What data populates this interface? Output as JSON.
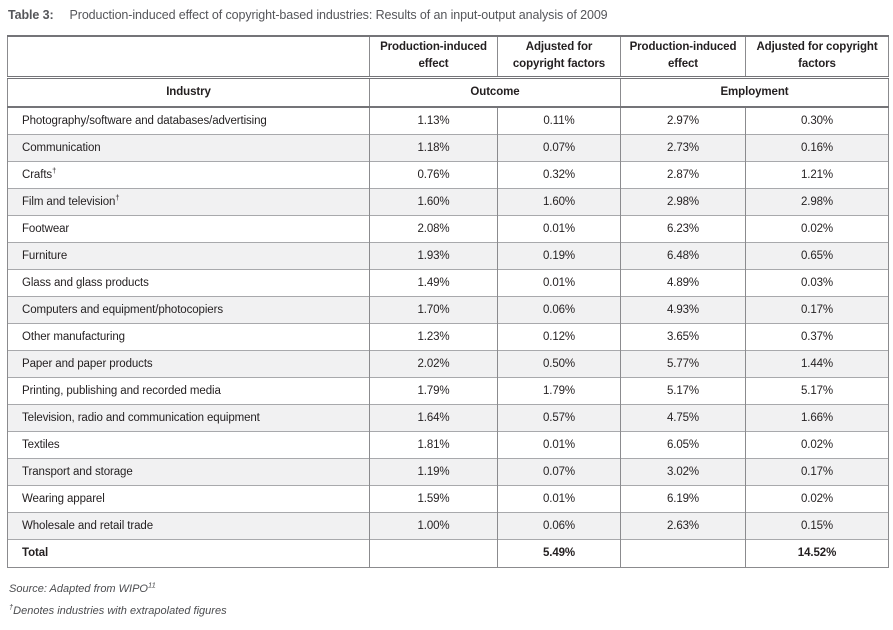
{
  "title": {
    "label": "Table 3:",
    "text": "Production-induced effect of copyright-based industries: Results of an input-output analysis of 2009"
  },
  "table": {
    "header_row1": [
      "Production-induced effect",
      "Adjusted for copyright factors",
      "Production-induced effect",
      "Adjusted for copyright factors"
    ],
    "header_row2": {
      "industry": "Industry",
      "outcome": "Outcome",
      "employment": "Employment"
    },
    "rows": [
      {
        "industry": "Photography/software and databases/advertising",
        "sup": "",
        "values": [
          "1.13%",
          "0.11%",
          "2.97%",
          "0.30%"
        ]
      },
      {
        "industry": "Communication",
        "sup": "",
        "values": [
          "1.18%",
          "0.07%",
          "2.73%",
          "0.16%"
        ]
      },
      {
        "industry": "Crafts",
        "sup": "†",
        "values": [
          "0.76%",
          "0.32%",
          "2.87%",
          "1.21%"
        ]
      },
      {
        "industry": "Film and television",
        "sup": "†",
        "values": [
          "1.60%",
          "1.60%",
          "2.98%",
          "2.98%"
        ]
      },
      {
        "industry": "Footwear",
        "sup": "",
        "values": [
          "2.08%",
          "0.01%",
          "6.23%",
          "0.02%"
        ]
      },
      {
        "industry": "Furniture",
        "sup": "",
        "values": [
          "1.93%",
          "0.19%",
          "6.48%",
          "0.65%"
        ]
      },
      {
        "industry": "Glass and glass products",
        "sup": "",
        "values": [
          "1.49%",
          "0.01%",
          "4.89%",
          "0.03%"
        ]
      },
      {
        "industry": "Computers and equipment/photocopiers",
        "sup": "",
        "values": [
          "1.70%",
          "0.06%",
          "4.93%",
          "0.17%"
        ]
      },
      {
        "industry": "Other manufacturing",
        "sup": "",
        "values": [
          "1.23%",
          "0.12%",
          "3.65%",
          "0.37%"
        ]
      },
      {
        "industry": "Paper and paper products",
        "sup": "",
        "values": [
          "2.02%",
          "0.50%",
          "5.77%",
          "1.44%"
        ]
      },
      {
        "industry": "Printing, publishing and recorded media",
        "sup": "",
        "values": [
          "1.79%",
          "1.79%",
          "5.17%",
          "5.17%"
        ]
      },
      {
        "industry": "Television, radio and communication equipment",
        "sup": "",
        "values": [
          "1.64%",
          "0.57%",
          "4.75%",
          "1.66%"
        ]
      },
      {
        "industry": "Textiles",
        "sup": "",
        "values": [
          "1.81%",
          "0.01%",
          "6.05%",
          "0.02%"
        ]
      },
      {
        "industry": "Transport and storage",
        "sup": "",
        "values": [
          "1.19%",
          "0.07%",
          "3.02%",
          "0.17%"
        ]
      },
      {
        "industry": "Wearing apparel",
        "sup": "",
        "values": [
          "1.59%",
          "0.01%",
          "6.19%",
          "0.02%"
        ]
      },
      {
        "industry": "Wholesale and retail trade",
        "sup": "",
        "values": [
          "1.00%",
          "0.06%",
          "2.63%",
          "0.15%"
        ]
      }
    ],
    "total": {
      "label": "Total",
      "outcome_adjusted": "5.49%",
      "employment_adjusted": "14.52%"
    }
  },
  "footnotes": {
    "source_text": "Source: Adapted from WIPO",
    "source_sup": "11",
    "dagger_sup": "†",
    "dagger_text": "Denotes industries with extrapolated figures"
  },
  "colors": {
    "alt_row_background": "#f1f1f2",
    "border_gray": "#8b8b8e",
    "rule_dark": "#747478",
    "text": "#231f20",
    "caption_text": "#55565a"
  }
}
